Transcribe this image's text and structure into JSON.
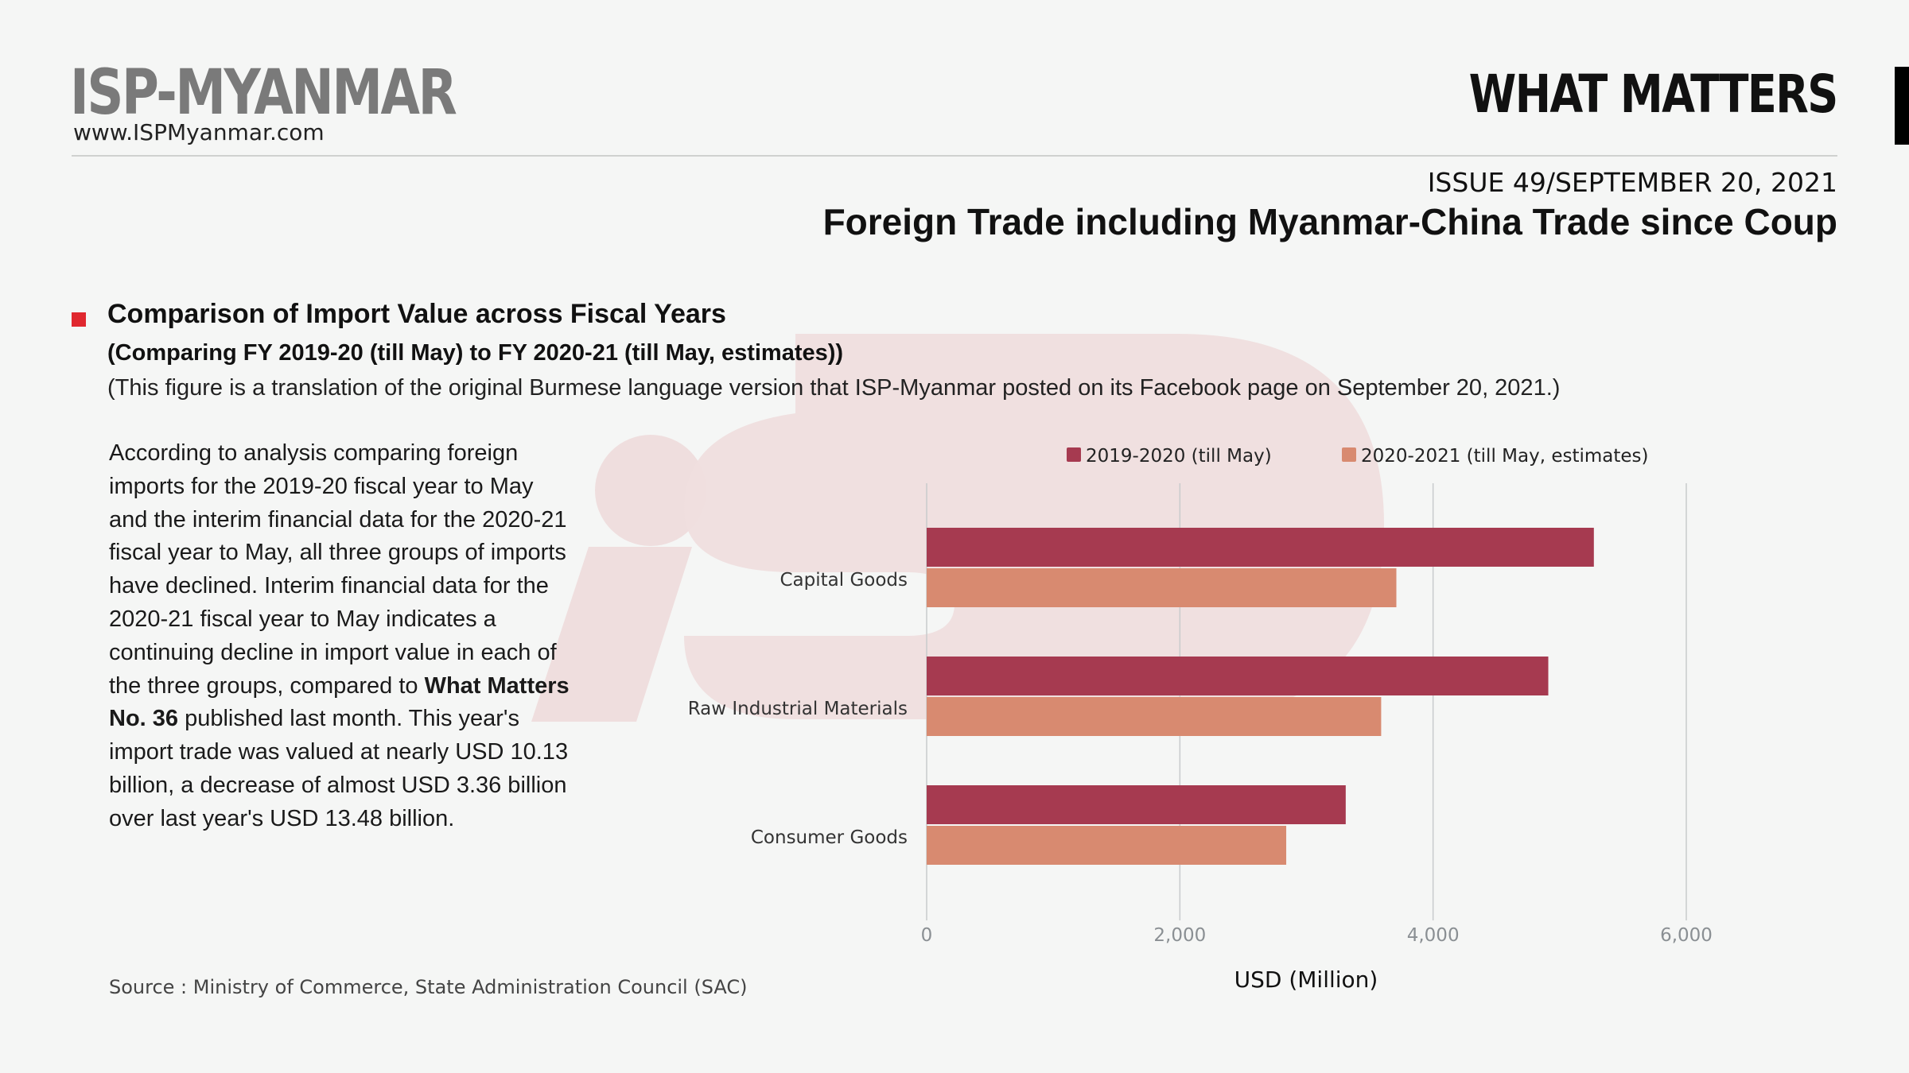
{
  "header": {
    "logo": "ISP-MYANMAR",
    "url": "www.ISPMyanmar.com",
    "series_title": "WHAT MATTERS",
    "issue_number": "ISSUE 49",
    "issue_date": "/SEPTEMBER 20, 2021",
    "headline": "Foreign Trade including Myanmar-China Trade since Coup"
  },
  "section": {
    "title": "Comparison of Import Value across Fiscal Years",
    "subtitle": "(Comparing FY 2019-20 (till May) to FY 2020-21 (till May, estimates))",
    "note": "(This figure is a translation of the original Burmese language version that ISP-Myanmar posted on its Facebook page on September 20, 2021.)"
  },
  "paragraph": {
    "part1": "According to analysis comparing foreign imports for the 2019-20 fiscal year to May and the interim financial data for the 2020-21 fiscal year to May, all three groups of imports have declined. Interim financial data for the 2020-21 fiscal year to May indicates a continuing decline in import value in each of the three groups, compared to ",
    "bold": "What Matters No. 36",
    "part2": " published last month. This year's import trade was valued at nearly USD 10.13 billion, a decrease of almost USD 3.36 billion over last year's USD 13.48 billion."
  },
  "source": "Source :  Ministry of Commerce, State Administration Council (SAC)",
  "colors": {
    "series1": "#a63a50",
    "series2": "#d88a70",
    "grid": "#c8cbcc",
    "watermark": "#efdede"
  },
  "chart_data": {
    "type": "bar",
    "orientation": "horizontal",
    "categories": [
      "Capital Goods",
      "Raw Industrial Materials",
      "Consumer Goods"
    ],
    "series": [
      {
        "name": "2019-2020 (till May)",
        "values": [
          5270,
          4910,
          3310
        ]
      },
      {
        "name": "2020-2021 (till May, estimates)",
        "values": [
          3710,
          3590,
          2840
        ]
      }
    ],
    "xlabel": "USD (Million)",
    "xlim": [
      0,
      6000
    ],
    "xticks": [
      0,
      2000,
      4000,
      6000
    ],
    "xtick_labels": [
      "0",
      "2,000",
      "4,000",
      "6,000"
    ],
    "grid": true,
    "legend_position": "top"
  }
}
